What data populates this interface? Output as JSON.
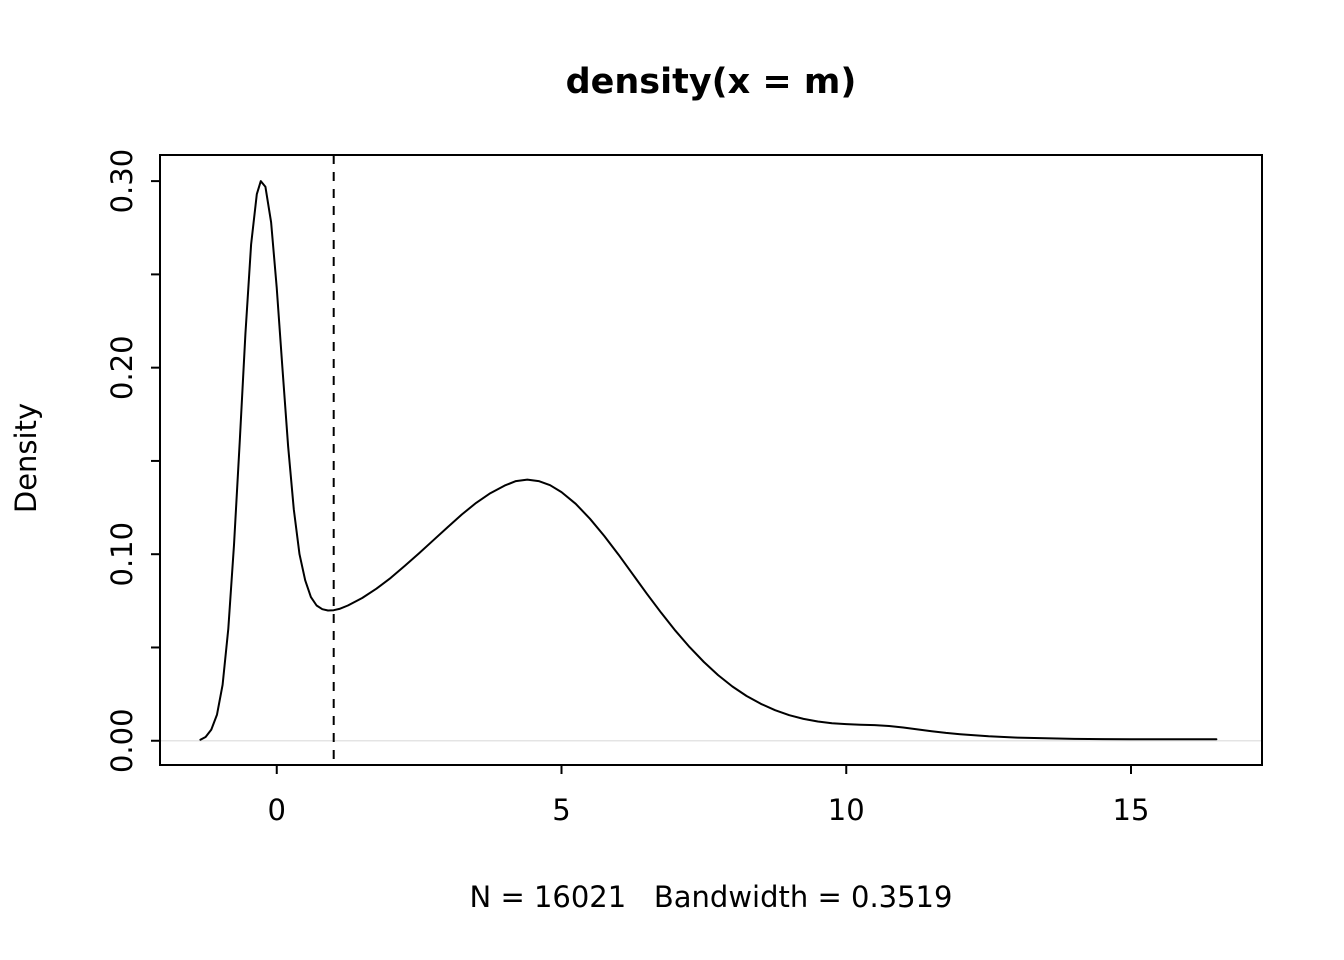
{
  "page": {
    "background": "#ffffff",
    "foreground": "#000000"
  },
  "chart_data": {
    "type": "line",
    "title": "density(x = m)",
    "xlabel": "N = 16021   Bandwidth = 0.3519",
    "ylabel": "Density",
    "stats": {
      "N": 16021,
      "bandwidth": 0.3519
    },
    "xlim": [
      -2.05,
      17.3
    ],
    "ylim": [
      -0.013,
      0.314
    ],
    "grid": false,
    "legend": "none",
    "x_ticks": [
      0,
      5,
      10,
      15
    ],
    "x_tick_labels": [
      "0",
      "5",
      "10",
      "15"
    ],
    "y_ticks": [
      0.0,
      0.05,
      0.1,
      0.15,
      0.2,
      0.25,
      0.3
    ],
    "y_tick_labels": [
      "0.00",
      "",
      "0.10",
      "",
      "0.20",
      "",
      "0.30"
    ],
    "vline": {
      "x": 1,
      "style": "dashed",
      "color": "#000000"
    },
    "baseline": {
      "y": 0,
      "color": "#e4e4e4"
    },
    "series": [
      {
        "name": "density",
        "color": "#000000",
        "points": [
          [
            -1.34,
            0.0005
          ],
          [
            -1.25,
            0.002
          ],
          [
            -1.15,
            0.006
          ],
          [
            -1.05,
            0.014
          ],
          [
            -0.95,
            0.03
          ],
          [
            -0.85,
            0.06
          ],
          [
            -0.75,
            0.105
          ],
          [
            -0.65,
            0.16
          ],
          [
            -0.55,
            0.218
          ],
          [
            -0.45,
            0.266
          ],
          [
            -0.35,
            0.293
          ],
          [
            -0.28,
            0.3
          ],
          [
            -0.2,
            0.297
          ],
          [
            -0.1,
            0.278
          ],
          [
            0.0,
            0.243
          ],
          [
            0.1,
            0.2
          ],
          [
            0.2,
            0.158
          ],
          [
            0.3,
            0.124
          ],
          [
            0.4,
            0.1
          ],
          [
            0.5,
            0.086
          ],
          [
            0.6,
            0.077
          ],
          [
            0.7,
            0.0725
          ],
          [
            0.8,
            0.0705
          ],
          [
            0.9,
            0.0698
          ],
          [
            1.0,
            0.07
          ],
          [
            1.1,
            0.0707
          ],
          [
            1.25,
            0.0725
          ],
          [
            1.5,
            0.0765
          ],
          [
            1.75,
            0.0815
          ],
          [
            2.0,
            0.0873
          ],
          [
            2.25,
            0.0938
          ],
          [
            2.5,
            0.1005
          ],
          [
            2.75,
            0.1075
          ],
          [
            3.0,
            0.1145
          ],
          [
            3.25,
            0.1213
          ],
          [
            3.5,
            0.1275
          ],
          [
            3.75,
            0.1327
          ],
          [
            4.0,
            0.1368
          ],
          [
            4.2,
            0.1392
          ],
          [
            4.4,
            0.14
          ],
          [
            4.6,
            0.1392
          ],
          [
            4.8,
            0.137
          ],
          [
            5.0,
            0.1333
          ],
          [
            5.25,
            0.127
          ],
          [
            5.5,
            0.119
          ],
          [
            5.75,
            0.1098
          ],
          [
            6.0,
            0.0998
          ],
          [
            6.25,
            0.0893
          ],
          [
            6.5,
            0.0788
          ],
          [
            6.75,
            0.0686
          ],
          [
            7.0,
            0.059
          ],
          [
            7.25,
            0.0502
          ],
          [
            7.5,
            0.0422
          ],
          [
            7.75,
            0.0352
          ],
          [
            8.0,
            0.0291
          ],
          [
            8.25,
            0.024
          ],
          [
            8.5,
            0.0198
          ],
          [
            8.75,
            0.0164
          ],
          [
            9.0,
            0.0137
          ],
          [
            9.25,
            0.0117
          ],
          [
            9.5,
            0.0103
          ],
          [
            9.75,
            0.0094
          ],
          [
            10.0,
            0.0089
          ],
          [
            10.25,
            0.0086
          ],
          [
            10.5,
            0.0084
          ],
          [
            10.75,
            0.0079
          ],
          [
            11.0,
            0.0071
          ],
          [
            11.25,
            0.0061
          ],
          [
            11.5,
            0.0051
          ],
          [
            11.75,
            0.0042
          ],
          [
            12.0,
            0.0035
          ],
          [
            12.5,
            0.0024
          ],
          [
            13.0,
            0.0017
          ],
          [
            13.5,
            0.0013
          ],
          [
            14.0,
            0.001
          ],
          [
            14.5,
            0.0009
          ],
          [
            15.0,
            0.0008
          ],
          [
            15.5,
            0.0008
          ],
          [
            16.0,
            0.0008
          ],
          [
            16.5,
            0.0008
          ]
        ]
      }
    ]
  }
}
